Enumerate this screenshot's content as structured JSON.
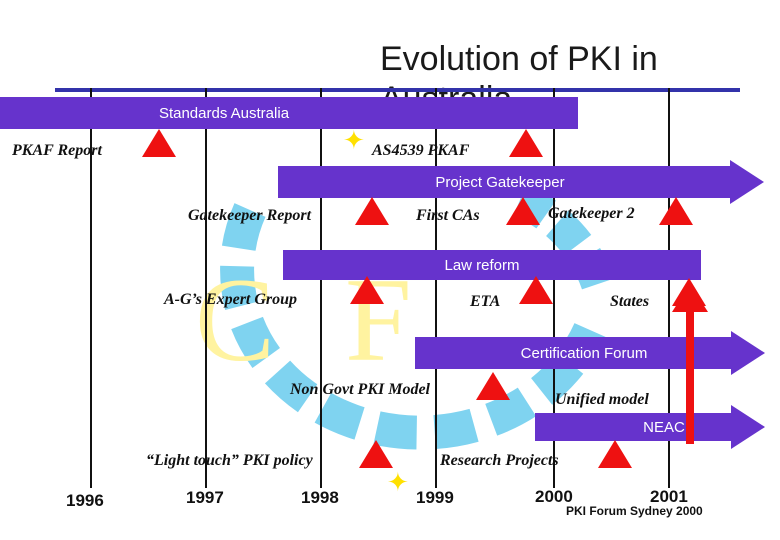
{
  "slide": {
    "title": "Evolution of PKI in",
    "title_cont": "Australia",
    "footer": "PKI Forum Sydney 2000"
  },
  "bars": {
    "standards_australia": "Standards Australia",
    "project_gatekeeper": "Project Gatekeeper",
    "law_reform": "Law reform",
    "certification_forum": "Certification Forum",
    "neac": "NEAC"
  },
  "milestones": {
    "pkaf_report": "PKAF Report",
    "as4539_pkaf": "AS4539 PKAF",
    "gatekeeper_report": "Gatekeeper Report",
    "first_cas": "First CAs",
    "gatekeeper_2": "Gatekeeper 2",
    "ag_expert_group": "A-G’s Expert Group",
    "eta": "ETA",
    "states": "States",
    "non_govt_pki_model": "Non Govt PKI Model",
    "unified_model": "Unified model",
    "light_touch_policy": "“Light touch” PKI policy",
    "research_projects": "Research Projects"
  },
  "years": [
    "1996",
    "1997",
    "1998",
    "1999",
    "2000",
    "2001"
  ],
  "colors": {
    "bar": "#6633cc",
    "triangle": "#ee1111",
    "watermark": "#66ccee",
    "watermark_letters": "#ffee88"
  },
  "watermark": {
    "text": "CTFA"
  }
}
